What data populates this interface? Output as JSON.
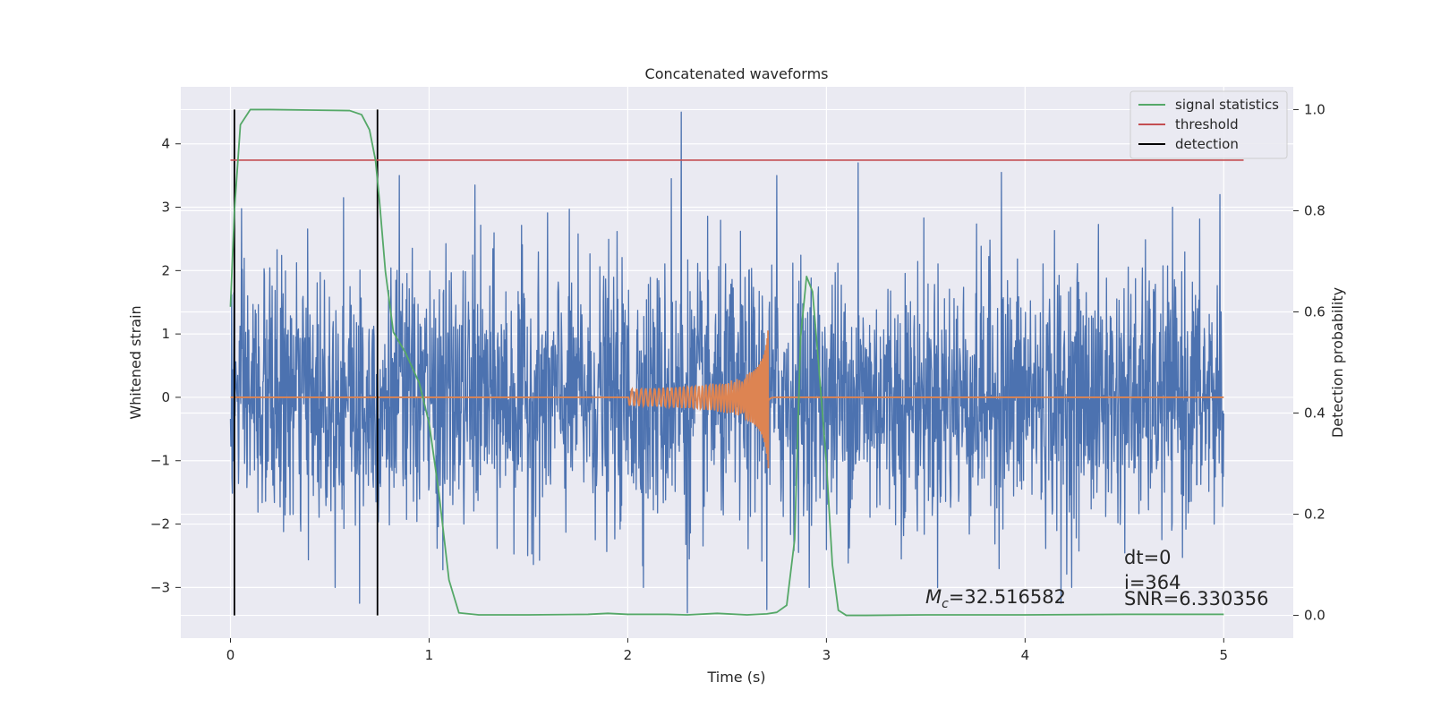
{
  "chart_data": {
    "type": "line",
    "title": "Concatenated waveforms",
    "xlabel": "Time (s)",
    "ylabel": "Whitened strain",
    "y2label": "Detection probability",
    "xlim": [
      -0.25,
      5.35
    ],
    "ylim": [
      -3.8,
      4.9
    ],
    "y2lim": [
      -0.045,
      1.045
    ],
    "x_ticks": [
      0,
      1,
      2,
      3,
      4,
      5
    ],
    "y_ticks": [
      -3,
      -2,
      -1,
      0,
      1,
      2,
      3,
      4
    ],
    "y2_ticks": [
      0.0,
      0.2,
      0.4,
      0.6,
      0.8,
      1.0
    ],
    "x_tick_labels": [
      "0",
      "1",
      "2",
      "3",
      "4",
      "5"
    ],
    "y_tick_labels": [
      "−3",
      "−2",
      "−1",
      "0",
      "1",
      "2",
      "3",
      "4"
    ],
    "y2_tick_labels": [
      "0.0",
      "0.2",
      "0.4",
      "0.6",
      "0.8",
      "1.0"
    ],
    "grid": true,
    "legend_position": "top-right",
    "colors": {
      "strain": "#4c72b0",
      "template": "#dd8452",
      "signal_statistics": "#55a868",
      "threshold": "#c44e52",
      "detection": "#000000",
      "background": "#eaeaf2",
      "grid": "#ffffff"
    },
    "series": [
      {
        "name": "signal statistics",
        "axis": "right",
        "x": [
          0.0,
          0.02,
          0.05,
          0.1,
          0.2,
          0.4,
          0.6,
          0.66,
          0.7,
          0.73,
          0.75,
          0.78,
          0.82,
          0.88,
          0.95,
          1.0,
          1.05,
          1.1,
          1.15,
          1.25,
          1.5,
          1.8,
          1.9,
          2.0,
          2.2,
          2.3,
          2.45,
          2.6,
          2.7,
          2.75,
          2.8,
          2.84,
          2.87,
          2.9,
          2.93,
          2.96,
          3.0,
          3.03,
          3.06,
          3.1,
          3.2,
          3.5,
          4.0,
          4.5,
          5.0
        ],
        "y": [
          0.61,
          0.8,
          0.97,
          1.0,
          1.0,
          0.999,
          0.998,
          0.99,
          0.96,
          0.9,
          0.82,
          0.68,
          0.56,
          0.52,
          0.46,
          0.38,
          0.24,
          0.07,
          0.005,
          0.001,
          0.001,
          0.002,
          0.004,
          0.002,
          0.002,
          0.001,
          0.004,
          0.001,
          0.003,
          0.006,
          0.02,
          0.15,
          0.55,
          0.67,
          0.64,
          0.5,
          0.3,
          0.1,
          0.01,
          0.0,
          0.0,
          0.001,
          0.001,
          0.002,
          0.002
        ]
      },
      {
        "name": "threshold",
        "axis": "right",
        "x": [
          0.0,
          5.1
        ],
        "y": [
          0.9,
          0.9
        ]
      },
      {
        "name": "detection",
        "axis": "right",
        "vlines_x": [
          0.02,
          0.74
        ],
        "ymin": 0.0,
        "ymax": 1.0
      },
      {
        "axis": "left",
        "kind": "noise",
        "x_range": [
          0.0,
          5.0
        ],
        "sigma": 1.0,
        "spikes": [
          {
            "x": 0.57,
            "y": 3.15
          },
          {
            "x": 0.85,
            "y": 3.5
          },
          {
            "x": 1.23,
            "y": 3.35
          },
          {
            "x": 2.27,
            "y": 4.5
          },
          {
            "x": 2.22,
            "y": 3.45
          },
          {
            "x": 2.75,
            "y": 3.5
          },
          {
            "x": 3.16,
            "y": 3.7
          },
          {
            "x": 3.88,
            "y": 3.55
          },
          {
            "x": 4.98,
            "y": 3.2
          },
          {
            "x": 2.3,
            "y": -3.4
          },
          {
            "x": 2.7,
            "y": -3.35
          },
          {
            "x": 0.65,
            "y": -3.25
          },
          {
            "x": 4.18,
            "y": -3.25
          }
        ]
      },
      {
        "axis": "left",
        "kind": "chirp",
        "flat_range": [
          0.0,
          5.0
        ],
        "chirp_start": 2.0,
        "merger": 2.71,
        "peak_amplitude": 1.25
      }
    ],
    "annotations": {
      "mc_label_prefix": "M",
      "mc_label_sub": "c",
      "mc_label_value": "=32.516582",
      "dt": "dt=0",
      "i": "i=364",
      "snr": "SNR=6.330356"
    }
  }
}
